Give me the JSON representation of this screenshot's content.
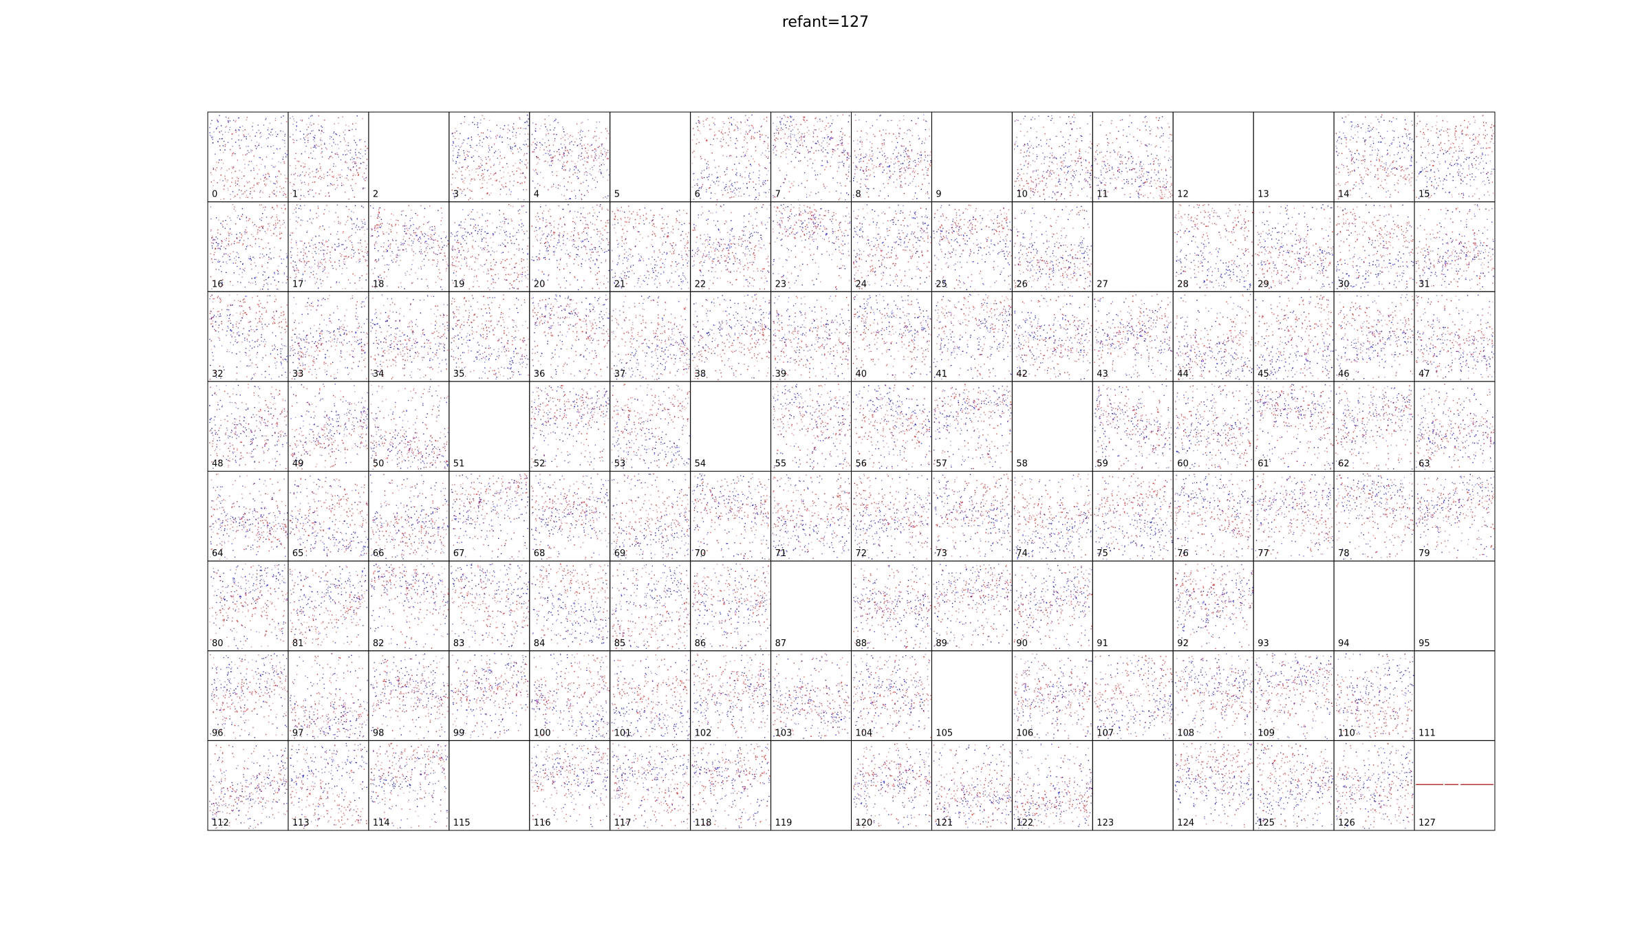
{
  "figure": {
    "title": "refant=127"
  },
  "chart_data": {
    "type": "scatter",
    "title": "refant=127",
    "layout": {
      "rows": 8,
      "cols": 16
    },
    "xlabel": "",
    "ylabel": "",
    "axes_ticks": false,
    "colors": {
      "positive": "#ff0000",
      "negative": "#0000ff",
      "frame": "#000000"
    },
    "reference_antenna": 127,
    "panels": [
      {
        "label": "0",
        "has_data": true
      },
      {
        "label": "1",
        "has_data": true
      },
      {
        "label": "2",
        "has_data": false
      },
      {
        "label": "3",
        "has_data": true
      },
      {
        "label": "4",
        "has_data": true
      },
      {
        "label": "5",
        "has_data": false
      },
      {
        "label": "6",
        "has_data": true
      },
      {
        "label": "7",
        "has_data": true
      },
      {
        "label": "8",
        "has_data": true
      },
      {
        "label": "9",
        "has_data": false
      },
      {
        "label": "10",
        "has_data": true
      },
      {
        "label": "11",
        "has_data": true
      },
      {
        "label": "12",
        "has_data": false
      },
      {
        "label": "13",
        "has_data": false
      },
      {
        "label": "14",
        "has_data": true
      },
      {
        "label": "15",
        "has_data": true
      },
      {
        "label": "16",
        "has_data": true
      },
      {
        "label": "17",
        "has_data": true
      },
      {
        "label": "18",
        "has_data": true
      },
      {
        "label": "19",
        "has_data": true
      },
      {
        "label": "20",
        "has_data": true
      },
      {
        "label": "21",
        "has_data": true
      },
      {
        "label": "22",
        "has_data": true
      },
      {
        "label": "23",
        "has_data": true
      },
      {
        "label": "24",
        "has_data": true
      },
      {
        "label": "25",
        "has_data": true
      },
      {
        "label": "26",
        "has_data": true
      },
      {
        "label": "27",
        "has_data": false
      },
      {
        "label": "28",
        "has_data": true
      },
      {
        "label": "29",
        "has_data": true
      },
      {
        "label": "30",
        "has_data": true
      },
      {
        "label": "31",
        "has_data": true
      },
      {
        "label": "32",
        "has_data": true
      },
      {
        "label": "33",
        "has_data": true
      },
      {
        "label": "34",
        "has_data": true
      },
      {
        "label": "35",
        "has_data": true
      },
      {
        "label": "36",
        "has_data": true
      },
      {
        "label": "37",
        "has_data": true
      },
      {
        "label": "38",
        "has_data": true
      },
      {
        "label": "39",
        "has_data": true
      },
      {
        "label": "40",
        "has_data": true
      },
      {
        "label": "41",
        "has_data": true
      },
      {
        "label": "42",
        "has_data": true
      },
      {
        "label": "43",
        "has_data": true
      },
      {
        "label": "44",
        "has_data": true
      },
      {
        "label": "45",
        "has_data": true
      },
      {
        "label": "46",
        "has_data": true
      },
      {
        "label": "47",
        "has_data": true
      },
      {
        "label": "48",
        "has_data": true
      },
      {
        "label": "49",
        "has_data": true
      },
      {
        "label": "50",
        "has_data": true
      },
      {
        "label": "51",
        "has_data": false
      },
      {
        "label": "52",
        "has_data": true
      },
      {
        "label": "53",
        "has_data": true
      },
      {
        "label": "54",
        "has_data": false
      },
      {
        "label": "55",
        "has_data": true
      },
      {
        "label": "56",
        "has_data": true
      },
      {
        "label": "57",
        "has_data": true
      },
      {
        "label": "58",
        "has_data": false
      },
      {
        "label": "59",
        "has_data": true
      },
      {
        "label": "60",
        "has_data": true
      },
      {
        "label": "61",
        "has_data": true
      },
      {
        "label": "62",
        "has_data": true
      },
      {
        "label": "63",
        "has_data": true
      },
      {
        "label": "64",
        "has_data": true
      },
      {
        "label": "65",
        "has_data": true
      },
      {
        "label": "66",
        "has_data": true
      },
      {
        "label": "67",
        "has_data": true
      },
      {
        "label": "68",
        "has_data": true
      },
      {
        "label": "69",
        "has_data": true
      },
      {
        "label": "70",
        "has_data": true
      },
      {
        "label": "71",
        "has_data": true
      },
      {
        "label": "72",
        "has_data": true
      },
      {
        "label": "73",
        "has_data": true
      },
      {
        "label": "74",
        "has_data": true
      },
      {
        "label": "75",
        "has_data": true
      },
      {
        "label": "76",
        "has_data": true
      },
      {
        "label": "77",
        "has_data": true
      },
      {
        "label": "78",
        "has_data": true
      },
      {
        "label": "79",
        "has_data": true
      },
      {
        "label": "80",
        "has_data": true
      },
      {
        "label": "81",
        "has_data": true
      },
      {
        "label": "82",
        "has_data": true
      },
      {
        "label": "83",
        "has_data": true
      },
      {
        "label": "84",
        "has_data": true
      },
      {
        "label": "85",
        "has_data": true
      },
      {
        "label": "86",
        "has_data": true
      },
      {
        "label": "87",
        "has_data": false
      },
      {
        "label": "88",
        "has_data": true
      },
      {
        "label": "89",
        "has_data": true
      },
      {
        "label": "90",
        "has_data": true
      },
      {
        "label": "91",
        "has_data": false
      },
      {
        "label": "92",
        "has_data": true
      },
      {
        "label": "93",
        "has_data": false
      },
      {
        "label": "94",
        "has_data": false
      },
      {
        "label": "95",
        "has_data": false
      },
      {
        "label": "96",
        "has_data": true
      },
      {
        "label": "97",
        "has_data": true
      },
      {
        "label": "98",
        "has_data": true
      },
      {
        "label": "99",
        "has_data": true
      },
      {
        "label": "100",
        "has_data": true
      },
      {
        "label": "101",
        "has_data": true
      },
      {
        "label": "102",
        "has_data": true
      },
      {
        "label": "103",
        "has_data": true
      },
      {
        "label": "104",
        "has_data": true
      },
      {
        "label": "105",
        "has_data": false
      },
      {
        "label": "106",
        "has_data": true
      },
      {
        "label": "107",
        "has_data": true
      },
      {
        "label": "108",
        "has_data": true
      },
      {
        "label": "109",
        "has_data": true
      },
      {
        "label": "110",
        "has_data": true
      },
      {
        "label": "111",
        "has_data": false
      },
      {
        "label": "112",
        "has_data": true
      },
      {
        "label": "113",
        "has_data": true
      },
      {
        "label": "114",
        "has_data": true
      },
      {
        "label": "115",
        "has_data": false
      },
      {
        "label": "116",
        "has_data": true
      },
      {
        "label": "117",
        "has_data": true
      },
      {
        "label": "118",
        "has_data": true
      },
      {
        "label": "119",
        "has_data": false
      },
      {
        "label": "120",
        "has_data": true
      },
      {
        "label": "121",
        "has_data": true
      },
      {
        "label": "122",
        "has_data": true
      },
      {
        "label": "123",
        "has_data": false
      },
      {
        "label": "124",
        "has_data": true
      },
      {
        "label": "125",
        "has_data": true
      },
      {
        "label": "126",
        "has_data": true
      },
      {
        "label": "127",
        "has_data": true,
        "reference": true
      }
    ]
  }
}
